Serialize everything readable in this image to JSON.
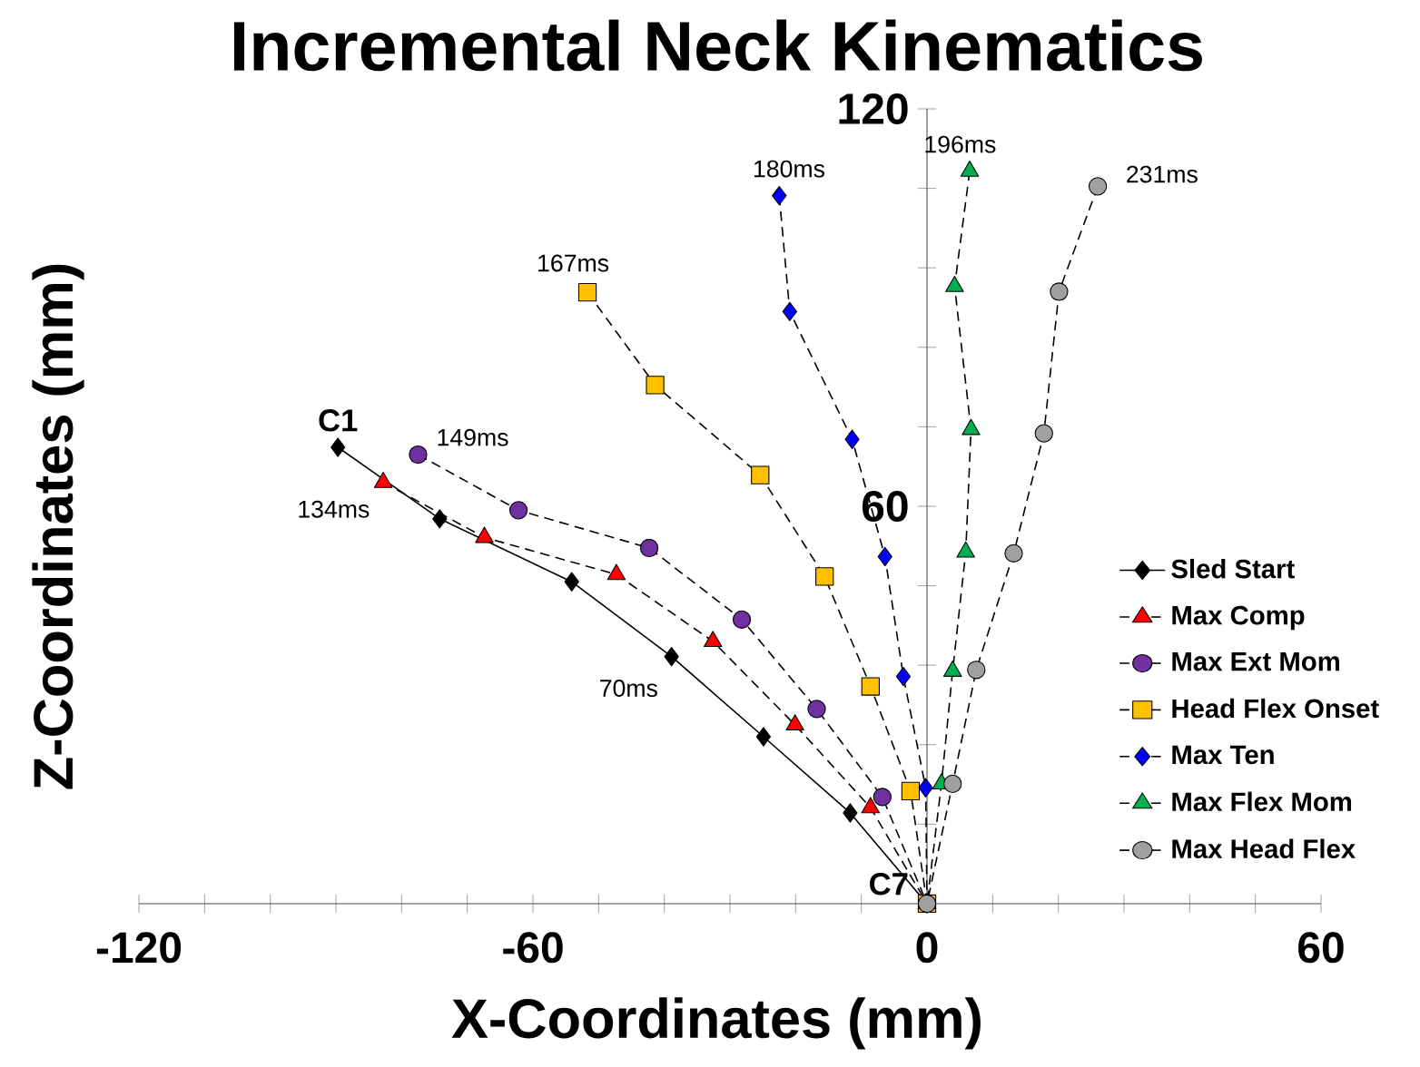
{
  "chart_data": {
    "type": "line",
    "title": "Incremental Neck Kinematics",
    "xlabel": "X-Coordinates (mm)",
    "ylabel": "Z-Coordinates (mm)",
    "xlim": [
      -120,
      60
    ],
    "ylim": [
      0,
      120
    ],
    "xticks": [
      -120,
      {
        "value": -110,
        "label": null
      },
      {
        "value": -100,
        "label": null
      },
      {
        "value": -90,
        "label": null
      },
      {
        "value": -80,
        "label": null
      },
      {
        "value": -70,
        "label": null
      },
      -60,
      {
        "value": -50,
        "label": null
      },
      {
        "value": -40,
        "label": null
      },
      {
        "value": -30,
        "label": null
      },
      {
        "value": -20,
        "label": null
      },
      {
        "value": -10,
        "label": null
      },
      0,
      {
        "value": 10,
        "label": null
      },
      {
        "value": 20,
        "label": null
      },
      {
        "value": 30,
        "label": null
      },
      {
        "value": 40,
        "label": null
      },
      {
        "value": 50,
        "label": null
      },
      60
    ],
    "yticks": [
      {
        "value": 12,
        "label": null
      },
      {
        "value": 24,
        "label": null
      },
      {
        "value": 36,
        "label": null
      },
      {
        "value": 48,
        "label": null
      },
      60,
      {
        "value": 72,
        "label": null
      },
      {
        "value": 84,
        "label": null
      },
      {
        "value": 96,
        "label": null
      },
      {
        "value": 108,
        "label": null
      },
      120
    ],
    "grid": false,
    "legend": "bottom right",
    "series": [
      {
        "name": "Sled Start",
        "color": "#000000",
        "marker": "diamond",
        "line_style": "solid",
        "x": [
          -89.7,
          -74.2,
          -54.1,
          -38.9,
          -24.9,
          -11.7,
          0
        ],
        "values": [
          68.9,
          58.1,
          48.6,
          37.3,
          25.2,
          13.7,
          0
        ]
      },
      {
        "name": "Max Comp",
        "color": "#ff0000",
        "marker": "triangle",
        "line_style": "dashed",
        "x": [
          -82.8,
          -67.4,
          -47.3,
          -32.6,
          -20.1,
          -8.6,
          0
        ],
        "values": [
          63.6,
          55.3,
          49.7,
          39.6,
          27.0,
          14.5,
          0
        ]
      },
      {
        "name": "Max Ext Mom",
        "color": "#7030a0",
        "marker": "circle",
        "line_style": "dashed",
        "x": [
          -77.5,
          -62.2,
          -42.3,
          -28.2,
          -16.8,
          -6.8,
          0
        ],
        "values": [
          67.8,
          59.4,
          53.7,
          42.9,
          29.4,
          16.1,
          0
        ]
      },
      {
        "name": "Head Flex Onset",
        "color": "#ffc000",
        "marker": "square",
        "line_style": "dashed",
        "x": [
          -51.7,
          -41.4,
          -25.4,
          -15.6,
          -8.6,
          -2.5,
          0
        ],
        "values": [
          92.3,
          78.3,
          64.7,
          49.4,
          32.8,
          17.0,
          0
        ]
      },
      {
        "name": "Max Ten",
        "color": "#0000ff",
        "marker": "diamond",
        "line_style": "dashed",
        "x": [
          -22.5,
          -20.9,
          -11.4,
          -6.4,
          -3.6,
          -0.2,
          0
        ],
        "values": [
          106.9,
          89.4,
          70.1,
          52.4,
          34.3,
          17.5,
          0
        ]
      },
      {
        "name": "Max Flex Mom",
        "color": "#00b050",
        "marker": "triangle",
        "line_style": "dashed",
        "x": [
          6.5,
          4.2,
          6.7,
          5.9,
          3.9,
          2.2,
          0
        ],
        "values": [
          110.6,
          93.2,
          71.6,
          53.1,
          35.1,
          18.1,
          0
        ]
      },
      {
        "name": "Max Head Flex",
        "color": "#a0a0a0",
        "marker": "circle",
        "line_style": "dashed",
        "x": [
          26.0,
          20.1,
          17.8,
          13.2,
          7.5,
          3.9,
          0
        ],
        "values": [
          108.3,
          92.4,
          71.0,
          52.9,
          35.3,
          18.1,
          0
        ]
      }
    ],
    "annotations": [
      {
        "text": "C1",
        "x": -89.7,
        "y": 68.9
      },
      {
        "text": "134ms",
        "x": -82.8,
        "y": 63.6
      },
      {
        "text": "149ms",
        "x": -77.5,
        "y": 67.8
      },
      {
        "text": "167ms",
        "x": -51.7,
        "y": 92.3
      },
      {
        "text": "180ms",
        "x": -22.5,
        "y": 106.9
      },
      {
        "text": "196ms",
        "x": 6.5,
        "y": 110.6
      },
      {
        "text": "231ms",
        "x": 26.0,
        "y": 108.3
      },
      {
        "text": "70ms",
        "x": -38.9,
        "y": 37.3
      },
      {
        "text": "C7",
        "x": 0,
        "y": 0
      }
    ]
  }
}
